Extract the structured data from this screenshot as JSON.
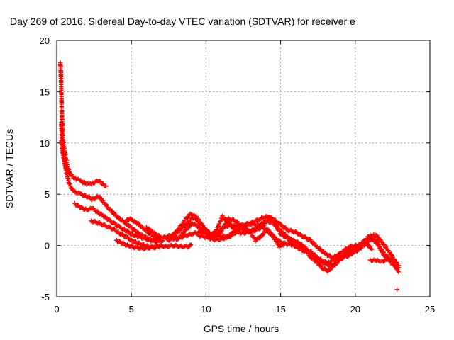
{
  "chart_data": {
    "type": "scatter",
    "title": "Day 269 of 2016, Sidereal Day-to-day VTEC variation (SDTVAR) for receiver e",
    "xlabel": "GPS time / hours",
    "ylabel": "SDTVAR / TECUs",
    "xlim": [
      0,
      25
    ],
    "ylim": [
      -5,
      20
    ],
    "xticks": [
      0,
      5,
      10,
      15,
      20,
      25
    ],
    "yticks": [
      -5,
      0,
      5,
      10,
      15,
      20
    ],
    "grid": true,
    "marker": "+",
    "color": "#ff0000",
    "series": [
      {
        "name": "SDTVAR",
        "tracks": [
          [
            [
              0.25,
              17.8
            ],
            [
              0.28,
              16.5
            ],
            [
              0.3,
              15.5
            ],
            [
              0.32,
              14.0
            ],
            [
              0.35,
              12.5
            ],
            [
              0.38,
              11.2
            ],
            [
              0.42,
              10.3
            ],
            [
              0.5,
              9.5
            ],
            [
              0.6,
              8.6
            ],
            [
              0.7,
              7.8
            ],
            [
              0.85,
              7.1
            ],
            [
              1.0,
              6.8
            ],
            [
              1.3,
              6.5
            ],
            [
              1.6,
              6.3
            ],
            [
              2.0,
              6.0
            ],
            [
              2.4,
              6.1
            ],
            [
              2.8,
              6.3
            ],
            [
              3.1,
              6.0
            ],
            [
              3.3,
              5.8
            ]
          ],
          [
            [
              0.3,
              12.0
            ],
            [
              0.35,
              10.5
            ],
            [
              0.45,
              9.0
            ],
            [
              0.6,
              7.5
            ],
            [
              0.8,
              6.2
            ],
            [
              1.0,
              5.5
            ],
            [
              1.3,
              5.2
            ],
            [
              1.6,
              5.0
            ],
            [
              2.0,
              4.8
            ],
            [
              2.4,
              4.5
            ],
            [
              2.8,
              4.8
            ],
            [
              3.1,
              4.3
            ],
            [
              3.5,
              3.6
            ],
            [
              3.9,
              3.0
            ],
            [
              4.3,
              2.5
            ],
            [
              4.7,
              2.1
            ],
            [
              5.1,
              1.6
            ],
            [
              5.5,
              1.2
            ],
            [
              5.9,
              0.8
            ],
            [
              6.3,
              0.6
            ],
            [
              6.7,
              0.4
            ],
            [
              7.1,
              0.5
            ]
          ],
          [
            [
              0.3,
              10.2
            ],
            [
              0.4,
              9.0
            ],
            [
              0.55,
              8.0
            ],
            [
              0.75,
              7.0
            ]
          ],
          [
            [
              1.2,
              4.1
            ],
            [
              1.6,
              3.7
            ],
            [
              2.0,
              3.5
            ],
            [
              2.4,
              3.6
            ],
            [
              2.8,
              3.2
            ],
            [
              3.2,
              2.8
            ],
            [
              3.7,
              2.3
            ],
            [
              4.2,
              1.8
            ],
            [
              4.6,
              1.5
            ],
            [
              5.0,
              1.1
            ],
            [
              5.4,
              0.9
            ],
            [
              5.9,
              0.7
            ],
            [
              6.3,
              0.5
            ],
            [
              6.8,
              0.4
            ]
          ],
          [
            [
              2.3,
              2.4
            ],
            [
              2.8,
              2.2
            ],
            [
              3.3,
              1.9
            ],
            [
              3.8,
              1.6
            ],
            [
              4.2,
              1.2
            ],
            [
              4.7,
              0.8
            ],
            [
              5.1,
              0.4
            ],
            [
              5.5,
              0.2
            ],
            [
              5.9,
              0.0
            ],
            [
              6.4,
              -0.2
            ],
            [
              6.9,
              -0.1
            ]
          ],
          [
            [
              4.0,
              0.5
            ],
            [
              4.4,
              0.2
            ],
            [
              4.8,
              0.0
            ],
            [
              5.3,
              -0.2
            ],
            [
              5.8,
              -0.3
            ],
            [
              6.3,
              -0.2
            ],
            [
              6.8,
              0.0
            ],
            [
              7.3,
              -0.1
            ],
            [
              7.8,
              0.0
            ],
            [
              8.3,
              -0.1
            ],
            [
              8.8,
              -0.1
            ],
            [
              9.0,
              0.0
            ]
          ],
          [
            [
              4.5,
              2.3
            ],
            [
              4.9,
              2.6
            ],
            [
              5.3,
              2.3
            ],
            [
              5.7,
              1.8
            ],
            [
              6.1,
              1.3
            ],
            [
              6.5,
              0.9
            ],
            [
              7.0,
              0.7
            ],
            [
              7.5,
              0.9
            ],
            [
              8.0,
              1.2
            ],
            [
              8.5,
              1.8
            ],
            [
              8.9,
              2.4
            ],
            [
              9.2,
              2.8
            ],
            [
              9.6,
              2.2
            ],
            [
              10.0,
              1.5
            ],
            [
              10.4,
              1.0
            ],
            [
              10.8,
              1.3
            ],
            [
              11.2,
              1.8
            ],
            [
              11.6,
              2.0
            ],
            [
              12.0,
              1.9
            ],
            [
              12.5,
              2.0
            ],
            [
              13.0,
              2.2
            ],
            [
              13.5,
              2.5
            ],
            [
              14.0,
              2.8
            ],
            [
              14.5,
              2.6
            ],
            [
              15.0,
              2.0
            ],
            [
              15.5,
              1.5
            ],
            [
              16.0,
              1.3
            ],
            [
              16.5,
              0.9
            ],
            [
              17.0,
              0.5
            ],
            [
              17.5,
              -0.2
            ],
            [
              18.0,
              -0.8
            ],
            [
              18.5,
              -1.2
            ],
            [
              19.0,
              -0.8
            ],
            [
              19.5,
              -0.4
            ],
            [
              20.0,
              -0.2
            ],
            [
              20.5,
              0.3
            ],
            [
              21.0,
              1.0
            ],
            [
              21.4,
              1.0
            ],
            [
              21.8,
              0.3
            ],
            [
              22.2,
              -0.5
            ],
            [
              22.6,
              -1.3
            ],
            [
              22.9,
              -2.0
            ]
          ],
          [
            [
              6.0,
              1.8
            ],
            [
              6.5,
              1.2
            ],
            [
              7.0,
              0.8
            ],
            [
              7.6,
              0.6
            ],
            [
              8.2,
              0.8
            ],
            [
              8.7,
              1.6
            ],
            [
              9.1,
              2.2
            ],
            [
              9.5,
              1.8
            ],
            [
              10.0,
              1.2
            ],
            [
              10.5,
              0.8
            ],
            [
              11.0,
              1.3
            ],
            [
              11.5,
              2.6
            ],
            [
              12.0,
              2.4
            ],
            [
              12.5,
              1.6
            ],
            [
              13.0,
              1.4
            ],
            [
              13.5,
              1.8
            ],
            [
              14.0,
              2.4
            ],
            [
              14.5,
              2.2
            ],
            [
              15.0,
              1.4
            ],
            [
              15.5,
              0.8
            ],
            [
              16.0,
              0.2
            ],
            [
              16.5,
              0.0
            ],
            [
              17.0,
              -0.8
            ],
            [
              17.5,
              -1.4
            ],
            [
              18.0,
              -1.8
            ],
            [
              18.5,
              -2.0
            ],
            [
              19.0,
              -1.4
            ],
            [
              19.4,
              -0.8
            ],
            [
              19.8,
              -0.6
            ],
            [
              20.2,
              -0.2
            ],
            [
              20.6,
              0.4
            ],
            [
              21.0,
              0.6
            ],
            [
              21.4,
              0.4
            ],
            [
              21.8,
              -0.6
            ],
            [
              22.2,
              -1.2
            ],
            [
              22.6,
              -1.8
            ],
            [
              22.9,
              -2.6
            ]
          ],
          [
            [
              7.5,
              0.5
            ],
            [
              8.0,
              1.3
            ],
            [
              8.5,
              2.3
            ],
            [
              8.9,
              3.0
            ],
            [
              9.2,
              3.0
            ],
            [
              9.5,
              2.5
            ],
            [
              9.9,
              1.7
            ],
            [
              10.3,
              0.9
            ],
            [
              10.7,
              1.5
            ],
            [
              11.1,
              2.8
            ],
            [
              11.5,
              2.3
            ],
            [
              11.9,
              1.5
            ],
            [
              12.3,
              1.2
            ],
            [
              12.8,
              1.3
            ],
            [
              13.3,
              1.5
            ],
            [
              13.8,
              1.8
            ],
            [
              14.2,
              2.8
            ],
            [
              14.6,
              2.2
            ],
            [
              15.0,
              1.1
            ],
            [
              15.4,
              0.8
            ],
            [
              15.8,
              0.5
            ],
            [
              16.2,
              0.3
            ],
            [
              16.6,
              -0.3
            ],
            [
              17.0,
              -1.1
            ],
            [
              17.4,
              -1.6
            ],
            [
              17.8,
              -2.2
            ],
            [
              18.2,
              -2.5
            ],
            [
              18.6,
              -1.8
            ],
            [
              19.0,
              -1.2
            ],
            [
              19.5,
              -1.0
            ],
            [
              20.0,
              -0.6
            ],
            [
              20.4,
              -0.2
            ],
            [
              20.8,
              0.3
            ],
            [
              21.2,
              0.9
            ],
            [
              21.5,
              0.2
            ],
            [
              21.9,
              -0.9
            ],
            [
              22.3,
              -1.5
            ]
          ],
          [
            [
              8.0,
              0.6
            ],
            [
              8.5,
              0.9
            ],
            [
              9.0,
              1.1
            ],
            [
              9.5,
              1.3
            ],
            [
              10.0,
              1.2
            ],
            [
              10.5,
              1.0
            ],
            [
              11.0,
              0.9
            ],
            [
              11.5,
              0.8
            ],
            [
              12.0,
              1.3
            ],
            [
              12.5,
              1.9
            ],
            [
              13.0,
              2.1
            ],
            [
              13.5,
              2.0
            ],
            [
              14.0,
              1.6
            ],
            [
              14.4,
              1.0
            ],
            [
              14.8,
              0.5
            ],
            [
              15.2,
              0.2
            ]
          ],
          [
            [
              9.5,
              1.0
            ],
            [
              10.0,
              0.8
            ],
            [
              10.5,
              0.6
            ],
            [
              11.0,
              0.6
            ],
            [
              11.5,
              0.9
            ],
            [
              12.0,
              1.5
            ],
            [
              12.5,
              1.7
            ],
            [
              13.0,
              1.2
            ],
            [
              13.3,
              0.5
            ],
            [
              13.7,
              0.9
            ],
            [
              14.1,
              1.6
            ],
            [
              14.5,
              0.9
            ],
            [
              14.9,
              -0.1
            ],
            [
              15.3,
              0.2
            ],
            [
              15.7,
              0.1
            ]
          ],
          [
            [
              15.6,
              0.4
            ],
            [
              16.0,
              -0.1
            ],
            [
              16.5,
              -0.5
            ],
            [
              17.0,
              -0.6
            ],
            [
              17.5,
              -1.2
            ],
            [
              17.9,
              -1.6
            ],
            [
              18.3,
              -1.6
            ],
            [
              18.7,
              -1.2
            ],
            [
              19.2,
              -0.5
            ],
            [
              19.7,
              -0.1
            ],
            [
              20.2,
              0.0
            ],
            [
              20.7,
              0.2
            ],
            [
              21.1,
              -0.3
            ]
          ],
          [
            [
              21.0,
              -1.4
            ],
            [
              21.4,
              -1.5
            ],
            [
              21.8,
              -1.5
            ],
            [
              22.2,
              -1.4
            ],
            [
              22.6,
              -1.9
            ],
            [
              22.9,
              -2.2
            ]
          ],
          [
            [
              22.8,
              -4.3
            ]
          ]
        ]
      }
    ]
  }
}
